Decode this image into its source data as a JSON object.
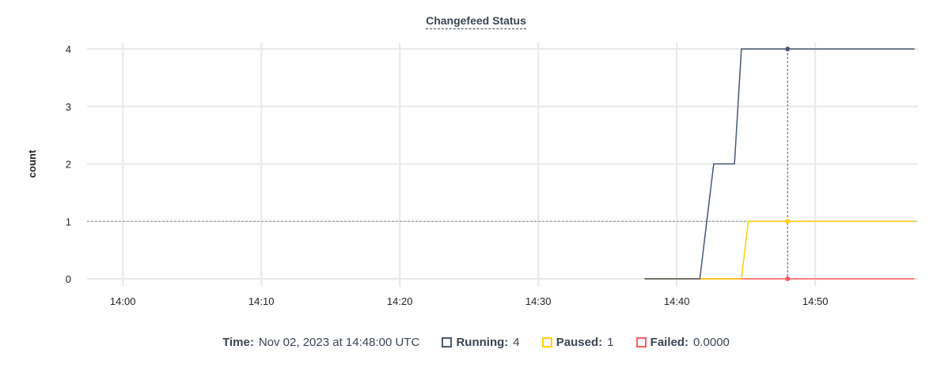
{
  "chart_data": {
    "type": "line",
    "title": "Changefeed Status",
    "ylabel": "count",
    "xlabel": "",
    "ylim": [
      0,
      4
    ],
    "yticks": [
      "0",
      "1",
      "2",
      "3",
      "4"
    ],
    "xlim": [
      "13:57:25",
      "14:57:25"
    ],
    "xticks": [
      "14:00",
      "14:10",
      "14:20",
      "14:30",
      "14:40",
      "14:50"
    ],
    "grid": true,
    "series": [
      {
        "name": "Running",
        "color": "#475872",
        "points": [
          [
            "14:37:40",
            0
          ],
          [
            "14:41:40",
            0
          ],
          [
            "14:42:40",
            2
          ],
          [
            "14:44:10",
            2
          ],
          [
            "14:44:40",
            4
          ],
          [
            "14:57:10",
            4
          ]
        ]
      },
      {
        "name": "Paused",
        "color": "#ffcd02",
        "points": [
          [
            "14:37:40",
            0
          ],
          [
            "14:44:40",
            0
          ],
          [
            "14:45:10",
            1
          ],
          [
            "14:57:10",
            1
          ]
        ]
      },
      {
        "name": "Failed",
        "color": "#ff5a5f",
        "points": [
          [
            "14:37:40",
            0
          ],
          [
            "14:57:10",
            0
          ]
        ]
      }
    ],
    "hover": {
      "time_x": "14:48:00",
      "time_label": "Time:",
      "time_value": "Nov 02, 2023 at 14:48:00 UTC",
      "values": [
        {
          "label": "Running:",
          "value": "4",
          "color": "#475872"
        },
        {
          "label": "Paused:",
          "value": "1",
          "color": "#ffcd02"
        },
        {
          "label": "Failed:",
          "value": "0.0000",
          "color": "#ff5a5f"
        }
      ]
    },
    "reference_line_y": 1
  }
}
